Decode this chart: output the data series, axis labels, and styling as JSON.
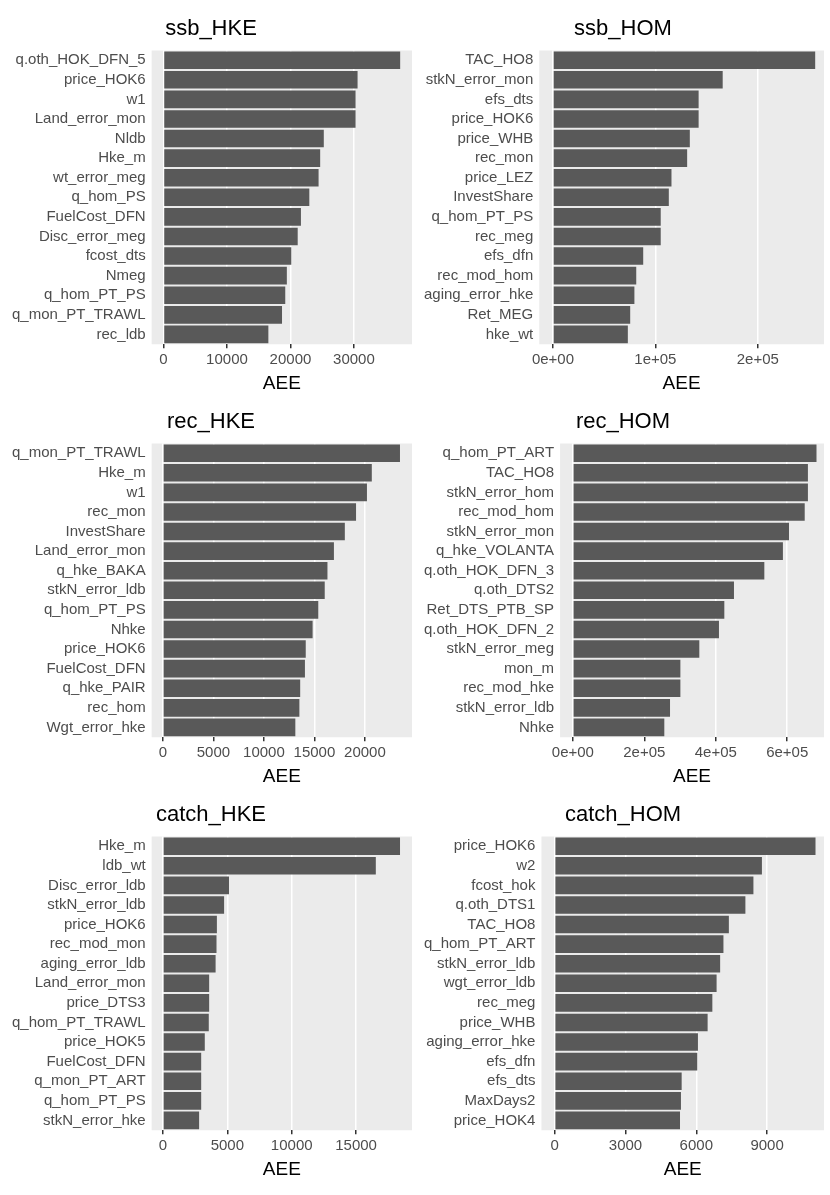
{
  "chart_data": [
    {
      "type": "bar",
      "orientation": "horizontal",
      "title": "ssb_HKE",
      "xlabel": "AEE",
      "color": "#595959",
      "grid": "x",
      "xlim": [
        -1864,
        39144
      ],
      "xticks": [
        0,
        10000,
        20000,
        30000
      ],
      "categories": [
        "q.oth_HOK_DFN_5",
        "price_HOK6",
        "w1",
        "Land_error_mon",
        "Nldb",
        "Hke_m",
        "wt_error_meg",
        "q_hom_PS",
        "FuelCost_DFN",
        "Disc_error_meg",
        "fcost_dts",
        "Nmeg",
        "q_hom_PT_PS",
        "q_mon_PT_TRAWL",
        "rec_ldb"
      ],
      "values": [
        37280,
        30570,
        30250,
        30250,
        25250,
        24680,
        24430,
        22970,
        21650,
        21140,
        20130,
        19430,
        19180,
        18670,
        16520
      ]
    },
    {
      "type": "bar",
      "orientation": "horizontal",
      "title": "ssb_HOM",
      "xlabel": "AEE",
      "color": "#595959",
      "grid": "x",
      "xlim": [
        -13400,
        264600
      ],
      "xticks": [
        {
          "value": 0,
          "label": "0e+00"
        },
        {
          "value": 100000,
          "label": "1e+05"
        },
        {
          "value": 200000,
          "label": "2e+05"
        }
      ],
      "categories": [
        "TAC_HO8",
        "stkN_error_mon",
        "efs_dts",
        "price_HOK6",
        "price_WHB",
        "rec_mon",
        "price_LEZ",
        "InvestShare",
        "q_hom_PT_PS",
        "rec_meg",
        "efs_dfn",
        "rec_mod_hom",
        "aging_error_hke",
        "Ret_MEG",
        "hke_wt"
      ],
      "values": [
        256000,
        165700,
        142200,
        142200,
        133600,
        131000,
        115700,
        113100,
        105200,
        105200,
        88100,
        81300,
        79500,
        75400,
        73100
      ]
    },
    {
      "type": "bar",
      "orientation": "horizontal",
      "title": "rec_HKE",
      "xlabel": "AEE",
      "color": "#595959",
      "grid": "x",
      "xlim": [
        -1115,
        24660
      ],
      "xticks": [
        0,
        5000,
        10000,
        15000,
        20000
      ],
      "categories": [
        "q_mon_PT_TRAWL",
        "Hke_m",
        "w1",
        "rec_mon",
        "InvestShare",
        "Land_error_mon",
        "q_hke_BAKA",
        "stkN_error_ldb",
        "q_hom_PT_PS",
        "Nhke",
        "price_HOK6",
        "FuelCost_DFN",
        "q_hke_PAIR",
        "rec_hom",
        "Wgt_error_hke"
      ],
      "values": [
        23470,
        20680,
        20200,
        19120,
        18010,
        16930,
        16290,
        16020,
        15380,
        14820,
        14140,
        14060,
        13590,
        13510,
        13110
      ]
    },
    {
      "type": "bar",
      "orientation": "horizontal",
      "title": "rec_HOM",
      "xlabel": "AEE",
      "color": "#595959",
      "grid": "x",
      "xlim": [
        -35800,
        703000
      ],
      "xticks": [
        {
          "value": 0,
          "label": "0e+00"
        },
        {
          "value": 200000,
          "label": "2e+05"
        },
        {
          "value": 400000,
          "label": "4e+05"
        },
        {
          "value": 600000,
          "label": "6e+05"
        }
      ],
      "categories": [
        "q_hom_PT_ART",
        "TAC_HO8",
        "stkN_error_hom",
        "rec_mod_hom",
        "stkN_error_mon",
        "q_hke_VOLANTA",
        "q.oth_HOK_DFN_3",
        "q.oth_DTS2",
        "Ret_DTS_PTB_SP",
        "q.oth_HOK_DFN_2",
        "stkN_error_meg",
        "mon_m",
        "rec_mod_hke",
        "stkN_error_ldb",
        "Nhke"
      ],
      "values": [
        682000,
        658000,
        658000,
        649000,
        605000,
        588000,
        536000,
        451000,
        424000,
        409000,
        354000,
        301000,
        301000,
        272000,
        256000
      ]
    },
    {
      "type": "bar",
      "orientation": "horizontal",
      "title": "catch_HKE",
      "xlabel": "AEE",
      "color": "#595959",
      "grid": "x",
      "xlim": [
        -875,
        19340
      ],
      "xticks": [
        0,
        5000,
        10000,
        15000
      ],
      "categories": [
        "Hke_m",
        "ldb_wt",
        "Disc_error_ldb",
        "stkN_error_ldb",
        "price_HOK6",
        "rec_mod_mon",
        "aging_error_ldb",
        "Land_error_mon",
        "price_DTS3",
        "q_hom_PT_TRAWL",
        "price_HOK5",
        "FuelCost_DFN",
        "q_mon_PT_ART",
        "q_hom_PT_PS",
        "stkN_error_hke"
      ],
      "values": [
        18410,
        16530,
        5130,
        4750,
        4190,
        4160,
        4090,
        3590,
        3590,
        3560,
        3250,
        2970,
        2970,
        2970,
        2810
      ]
    },
    {
      "type": "bar",
      "orientation": "horizontal",
      "title": "catch_HOM",
      "xlabel": "AEE",
      "color": "#595959",
      "grid": "x",
      "xlim": [
        -560,
        11410
      ],
      "xticks": [
        0,
        3000,
        6000,
        9000
      ],
      "categories": [
        "price_HOK6",
        "w2",
        "fcost_hok",
        "q.oth_DTS1",
        "TAC_HO8",
        "q_hom_PT_ART",
        "stkN_error_ldb",
        "wgt_error_ldb",
        "rec_meg",
        "price_WHB",
        "aging_error_hke",
        "efs_dfn",
        "efs_dts",
        "MaxDays2",
        "price_HOK4"
      ],
      "values": [
        11050,
        8780,
        8420,
        8080,
        7380,
        7150,
        7010,
        6860,
        6680,
        6480,
        6070,
        6040,
        5380,
        5350,
        5310
      ]
    }
  ]
}
